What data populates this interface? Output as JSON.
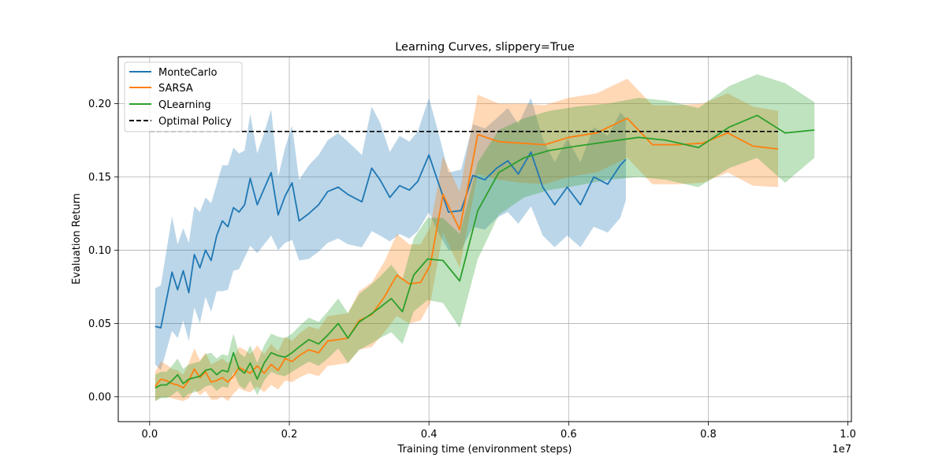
{
  "chart_data": {
    "type": "line",
    "title": "Learning Curves, slippery=True",
    "xlabel": "Training time (environment steps)",
    "ylabel": "Evaluation Return",
    "x_offset_label": "1e7",
    "xlim": [
      -0.045,
      1.005
    ],
    "ylim": [
      -0.017,
      0.232
    ],
    "x_ticks": [
      0.0,
      0.2,
      0.4,
      0.6,
      0.8,
      1.0
    ],
    "x_tick_labels": [
      "0.0",
      "0.2",
      "0.4",
      "0.6",
      "0.8",
      "1.0"
    ],
    "y_ticks": [
      0.0,
      0.05,
      0.1,
      0.15,
      0.2
    ],
    "y_tick_labels": [
      "0.00",
      "0.05",
      "0.10",
      "0.15",
      "0.20"
    ],
    "grid": true,
    "legend_position": "upper-left",
    "series": [
      {
        "name": "MonteCarlo",
        "color": "#1f77b4",
        "x": [
          0.008,
          0.016,
          0.032,
          0.04,
          0.048,
          0.056,
          0.064,
          0.072,
          0.08,
          0.088,
          0.096,
          0.104,
          0.112,
          0.12,
          0.128,
          0.136,
          0.144,
          0.154,
          0.164,
          0.174,
          0.184,
          0.194,
          0.204,
          0.214,
          0.228,
          0.242,
          0.255,
          0.27,
          0.284,
          0.304,
          0.318,
          0.33,
          0.344,
          0.358,
          0.372,
          0.384,
          0.4,
          0.412,
          0.428,
          0.446,
          0.463,
          0.48,
          0.497,
          0.513,
          0.528,
          0.546,
          0.563,
          0.58,
          0.598,
          0.617,
          0.636,
          0.656,
          0.674,
          0.682
        ],
        "y": [
          0.048,
          0.047,
          0.085,
          0.073,
          0.086,
          0.071,
          0.097,
          0.088,
          0.1,
          0.093,
          0.11,
          0.12,
          0.116,
          0.129,
          0.126,
          0.131,
          0.149,
          0.131,
          0.142,
          0.153,
          0.124,
          0.137,
          0.146,
          0.12,
          0.125,
          0.131,
          0.14,
          0.143,
          0.138,
          0.133,
          0.156,
          0.148,
          0.136,
          0.144,
          0.141,
          0.147,
          0.165,
          0.148,
          0.126,
          0.127,
          0.151,
          0.148,
          0.156,
          0.161,
          0.152,
          0.167,
          0.143,
          0.131,
          0.143,
          0.131,
          0.15,
          0.145,
          0.158,
          0.162
        ],
        "lower": [
          0.022,
          0.018,
          0.045,
          0.04,
          0.052,
          0.038,
          0.061,
          0.05,
          0.068,
          0.058,
          0.072,
          0.072,
          0.073,
          0.086,
          0.087,
          0.095,
          0.103,
          0.098,
          0.104,
          0.11,
          0.1,
          0.105,
          0.107,
          0.093,
          0.094,
          0.099,
          0.105,
          0.108,
          0.104,
          0.102,
          0.113,
          0.11,
          0.106,
          0.111,
          0.108,
          0.113,
          0.126,
          0.113,
          0.1,
          0.1,
          0.116,
          0.114,
          0.122,
          0.126,
          0.118,
          0.13,
          0.11,
          0.102,
          0.11,
          0.102,
          0.116,
          0.112,
          0.122,
          0.134
        ],
        "upper": [
          0.074,
          0.076,
          0.123,
          0.104,
          0.115,
          0.105,
          0.13,
          0.126,
          0.136,
          0.132,
          0.145,
          0.158,
          0.158,
          0.17,
          0.166,
          0.168,
          0.193,
          0.166,
          0.18,
          0.196,
          0.15,
          0.17,
          0.185,
          0.148,
          0.158,
          0.165,
          0.175,
          0.18,
          0.174,
          0.165,
          0.198,
          0.187,
          0.167,
          0.178,
          0.174,
          0.181,
          0.204,
          0.183,
          0.153,
          0.155,
          0.186,
          0.183,
          0.19,
          0.197,
          0.186,
          0.204,
          0.176,
          0.16,
          0.176,
          0.16,
          0.184,
          0.178,
          0.194,
          0.19
        ]
      },
      {
        "name": "SARSA",
        "color": "#ff7f0e",
        "x": [
          0.008,
          0.016,
          0.024,
          0.032,
          0.04,
          0.048,
          0.056,
          0.064,
          0.072,
          0.08,
          0.088,
          0.096,
          0.104,
          0.112,
          0.12,
          0.128,
          0.136,
          0.144,
          0.154,
          0.164,
          0.174,
          0.184,
          0.194,
          0.204,
          0.214,
          0.228,
          0.242,
          0.255,
          0.27,
          0.284,
          0.3,
          0.318,
          0.336,
          0.354,
          0.372,
          0.388,
          0.402,
          0.42,
          0.444,
          0.47,
          0.5,
          0.532,
          0.566,
          0.6,
          0.64,
          0.684,
          0.72,
          0.756,
          0.792,
          0.828,
          0.864,
          0.9
        ],
        "y": [
          0.007,
          0.012,
          0.011,
          0.009,
          0.008,
          0.006,
          0.011,
          0.019,
          0.013,
          0.017,
          0.01,
          0.011,
          0.013,
          0.01,
          0.014,
          0.02,
          0.018,
          0.016,
          0.021,
          0.016,
          0.022,
          0.018,
          0.026,
          0.024,
          0.028,
          0.032,
          0.03,
          0.038,
          0.039,
          0.04,
          0.052,
          0.056,
          0.068,
          0.083,
          0.077,
          0.078,
          0.09,
          0.138,
          0.114,
          0.179,
          0.174,
          0.173,
          0.172,
          0.177,
          0.18,
          0.19,
          0.172,
          0.172,
          0.173,
          0.18,
          0.171,
          0.169
        ],
        "lower": [
          -0.003,
          0.0,
          0.0,
          -0.001,
          -0.002,
          -0.003,
          -0.001,
          0.005,
          0.001,
          0.004,
          -0.002,
          -0.002,
          0.0,
          -0.003,
          0.002,
          0.006,
          0.004,
          0.003,
          0.007,
          0.003,
          0.008,
          0.005,
          0.011,
          0.01,
          0.013,
          0.016,
          0.014,
          0.021,
          0.022,
          0.023,
          0.032,
          0.034,
          0.044,
          0.055,
          0.05,
          0.052,
          0.064,
          0.112,
          0.088,
          0.152,
          0.148,
          0.146,
          0.145,
          0.15,
          0.153,
          0.163,
          0.145,
          0.145,
          0.146,
          0.153,
          0.144,
          0.143
        ],
        "upper": [
          0.017,
          0.024,
          0.022,
          0.019,
          0.018,
          0.015,
          0.023,
          0.033,
          0.025,
          0.03,
          0.022,
          0.024,
          0.026,
          0.023,
          0.026,
          0.034,
          0.032,
          0.029,
          0.035,
          0.029,
          0.036,
          0.031,
          0.041,
          0.038,
          0.043,
          0.048,
          0.046,
          0.055,
          0.056,
          0.057,
          0.072,
          0.078,
          0.092,
          0.111,
          0.104,
          0.104,
          0.116,
          0.164,
          0.14,
          0.206,
          0.2,
          0.2,
          0.199,
          0.204,
          0.207,
          0.217,
          0.199,
          0.199,
          0.2,
          0.207,
          0.198,
          0.195
        ]
      },
      {
        "name": "QLearning",
        "color": "#2ca02c",
        "x": [
          0.008,
          0.016,
          0.024,
          0.032,
          0.04,
          0.048,
          0.056,
          0.064,
          0.072,
          0.08,
          0.088,
          0.096,
          0.104,
          0.112,
          0.12,
          0.128,
          0.136,
          0.144,
          0.154,
          0.164,
          0.174,
          0.184,
          0.194,
          0.204,
          0.214,
          0.228,
          0.242,
          0.255,
          0.27,
          0.284,
          0.3,
          0.316,
          0.33,
          0.346,
          0.362,
          0.378,
          0.398,
          0.42,
          0.444,
          0.47,
          0.5,
          0.536,
          0.572,
          0.612,
          0.656,
          0.7,
          0.74,
          0.786,
          0.83,
          0.87,
          0.91,
          0.952
        ],
        "y": [
          0.006,
          0.008,
          0.008,
          0.011,
          0.015,
          0.009,
          0.012,
          0.013,
          0.014,
          0.018,
          0.019,
          0.015,
          0.018,
          0.017,
          0.03,
          0.019,
          0.016,
          0.023,
          0.012,
          0.023,
          0.03,
          0.028,
          0.027,
          0.03,
          0.034,
          0.039,
          0.036,
          0.042,
          0.05,
          0.04,
          0.051,
          0.056,
          0.061,
          0.067,
          0.058,
          0.083,
          0.094,
          0.093,
          0.079,
          0.127,
          0.153,
          0.163,
          0.168,
          0.171,
          0.174,
          0.177,
          0.175,
          0.17,
          0.184,
          0.192,
          0.18,
          0.182
        ],
        "lower": [
          -0.003,
          -0.001,
          -0.001,
          0.001,
          0.004,
          -0.001,
          0.002,
          0.003,
          0.004,
          0.007,
          0.008,
          0.004,
          0.007,
          0.006,
          0.017,
          0.008,
          0.005,
          0.011,
          0.001,
          0.011,
          0.017,
          0.015,
          0.014,
          0.017,
          0.02,
          0.024,
          0.021,
          0.026,
          0.033,
          0.023,
          0.032,
          0.036,
          0.04,
          0.044,
          0.036,
          0.058,
          0.066,
          0.064,
          0.047,
          0.094,
          0.124,
          0.136,
          0.141,
          0.144,
          0.148,
          0.15,
          0.148,
          0.143,
          0.156,
          0.163,
          0.146,
          0.163
        ],
        "upper": [
          0.015,
          0.017,
          0.017,
          0.021,
          0.026,
          0.019,
          0.022,
          0.023,
          0.024,
          0.029,
          0.03,
          0.026,
          0.029,
          0.028,
          0.043,
          0.03,
          0.027,
          0.035,
          0.023,
          0.035,
          0.043,
          0.041,
          0.04,
          0.043,
          0.048,
          0.054,
          0.051,
          0.058,
          0.067,
          0.057,
          0.07,
          0.076,
          0.082,
          0.09,
          0.08,
          0.108,
          0.122,
          0.122,
          0.111,
          0.16,
          0.182,
          0.19,
          0.195,
          0.198,
          0.2,
          0.204,
          0.202,
          0.197,
          0.212,
          0.22,
          0.214,
          0.201
        ]
      },
      {
        "name": "Optimal Policy",
        "color": "#000000",
        "dashed": true,
        "x": [
          0.0,
          0.9
        ],
        "y": [
          0.181,
          0.181
        ]
      }
    ]
  }
}
